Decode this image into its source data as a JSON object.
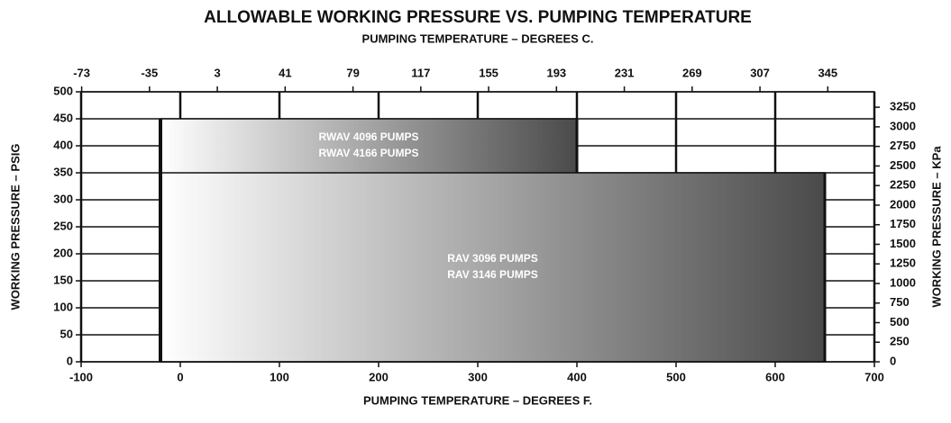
{
  "chart_data": {
    "type": "range-bar",
    "title": "ALLOWABLE WORKING PRESSURE VS. PUMPING TEMPERATURE",
    "x_label": "PUMPING TEMPERATURE – DEGREES F.",
    "x2_label": "PUMPING TEMPERATURE – DEGREES C.",
    "y_label": "WORKING PRESSURE – PSIG",
    "y2_label": "WORKING PRESSURE – KPa",
    "xlim": [
      -100,
      700
    ],
    "xticks": [
      -100,
      0,
      100,
      200,
      300,
      400,
      500,
      600,
      700
    ],
    "x2lim": [
      -73.3,
      371.1
    ],
    "x2ticks": [
      -73,
      -35,
      3,
      41,
      79,
      117,
      155,
      193,
      231,
      269,
      307,
      345
    ],
    "ylim": [
      0,
      500
    ],
    "yticks": [
      0,
      50,
      100,
      150,
      200,
      250,
      300,
      350,
      400,
      450,
      500
    ],
    "y2lim": [
      0,
      3447
    ],
    "y2ticks": [
      0,
      250,
      500,
      750,
      1000,
      1250,
      1500,
      1750,
      2000,
      2250,
      2500,
      2750,
      3000,
      3250
    ],
    "grid": true,
    "series": [
      {
        "name": [
          "RWAV 4096 PUMPS",
          "RWAV 4166 PUMPS"
        ],
        "x_range": [
          -20,
          400
        ],
        "value": 450,
        "color": [
          "#ffffff",
          "#4a4a4a"
        ]
      },
      {
        "name": [
          "RAV 3096 PUMPS",
          "RAV 3146 PUMPS"
        ],
        "x_range": [
          -20,
          650
        ],
        "value": 350,
        "color": [
          "#ffffff",
          "#4a4a4a"
        ]
      }
    ]
  }
}
